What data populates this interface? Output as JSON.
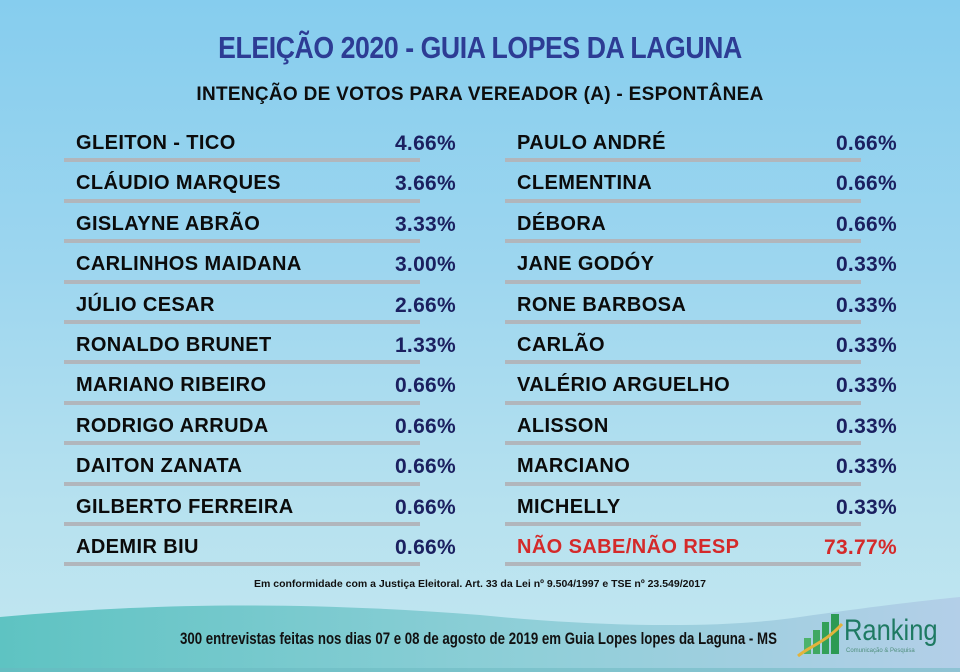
{
  "header": {
    "title": "ELEIÇÃO 2020 - GUIA LOPES DA LAGUNA",
    "subtitle": "INTENÇÃO DE VOTOS PARA VEREADOR (A) - ESPONTÂNEA"
  },
  "left_column": [
    {
      "name": "GLEITON - TICO",
      "value": "4.66%"
    },
    {
      "name": "CLÁUDIO MARQUES",
      "value": "3.66%"
    },
    {
      "name": "GISLAYNE ABRÃO",
      "value": "3.33%"
    },
    {
      "name": "CARLINHOS MAIDANA",
      "value": "3.00%"
    },
    {
      "name": "JÚLIO CESAR",
      "value": "2.66%"
    },
    {
      "name": "RONALDO BRUNET",
      "value": "1.33%"
    },
    {
      "name": "MARIANO RIBEIRO",
      "value": "0.66%"
    },
    {
      "name": "RODRIGO ARRUDA",
      "value": "0.66%"
    },
    {
      "name": "DAITON ZANATA",
      "value": "0.66%"
    },
    {
      "name": "GILBERTO FERREIRA",
      "value": "0.66%"
    },
    {
      "name": "ADEMIR BIU",
      "value": "0.66%"
    }
  ],
  "right_column": [
    {
      "name": "PAULO ANDRÉ",
      "value": "0.66%"
    },
    {
      "name": "CLEMENTINA",
      "value": "0.66%"
    },
    {
      "name": "DÉBORA",
      "value": "0.66%"
    },
    {
      "name": "JANE GODÓY",
      "value": "0.33%"
    },
    {
      "name": "RONE BARBOSA",
      "value": "0.33%"
    },
    {
      "name": "CARLÃO",
      "value": "0.33%"
    },
    {
      "name": "VALÉRIO ARGUELHO",
      "value": "0.33%"
    },
    {
      "name": "ALISSON",
      "value": "0.33%"
    },
    {
      "name": "MARCIANO",
      "value": "0.33%"
    },
    {
      "name": "MICHELLY",
      "value": "0.33%"
    },
    {
      "name": "NÃO SABE/NÃO RESP",
      "value": "73.77%",
      "highlight": true
    }
  ],
  "legal_note": "Em conformidade com a Justiça Eleitoral. Art. 33 da Lei nº 9.504/1997 e TSE nº 23.549/2017",
  "footer": {
    "methodology": "300 entrevistas feitas nos dias 07 e 08 de agosto de 2019 em Guia Lopes lopes da Laguna - MS",
    "logo_name": "Ranking",
    "logo_tagline": "Comunicação & Pesquisa"
  },
  "colors": {
    "title": "#2d3c94",
    "values": "#1b2060",
    "highlight": "#d42a2a",
    "divider": "#b1b6bc",
    "logo_green": "#1e7a62"
  }
}
